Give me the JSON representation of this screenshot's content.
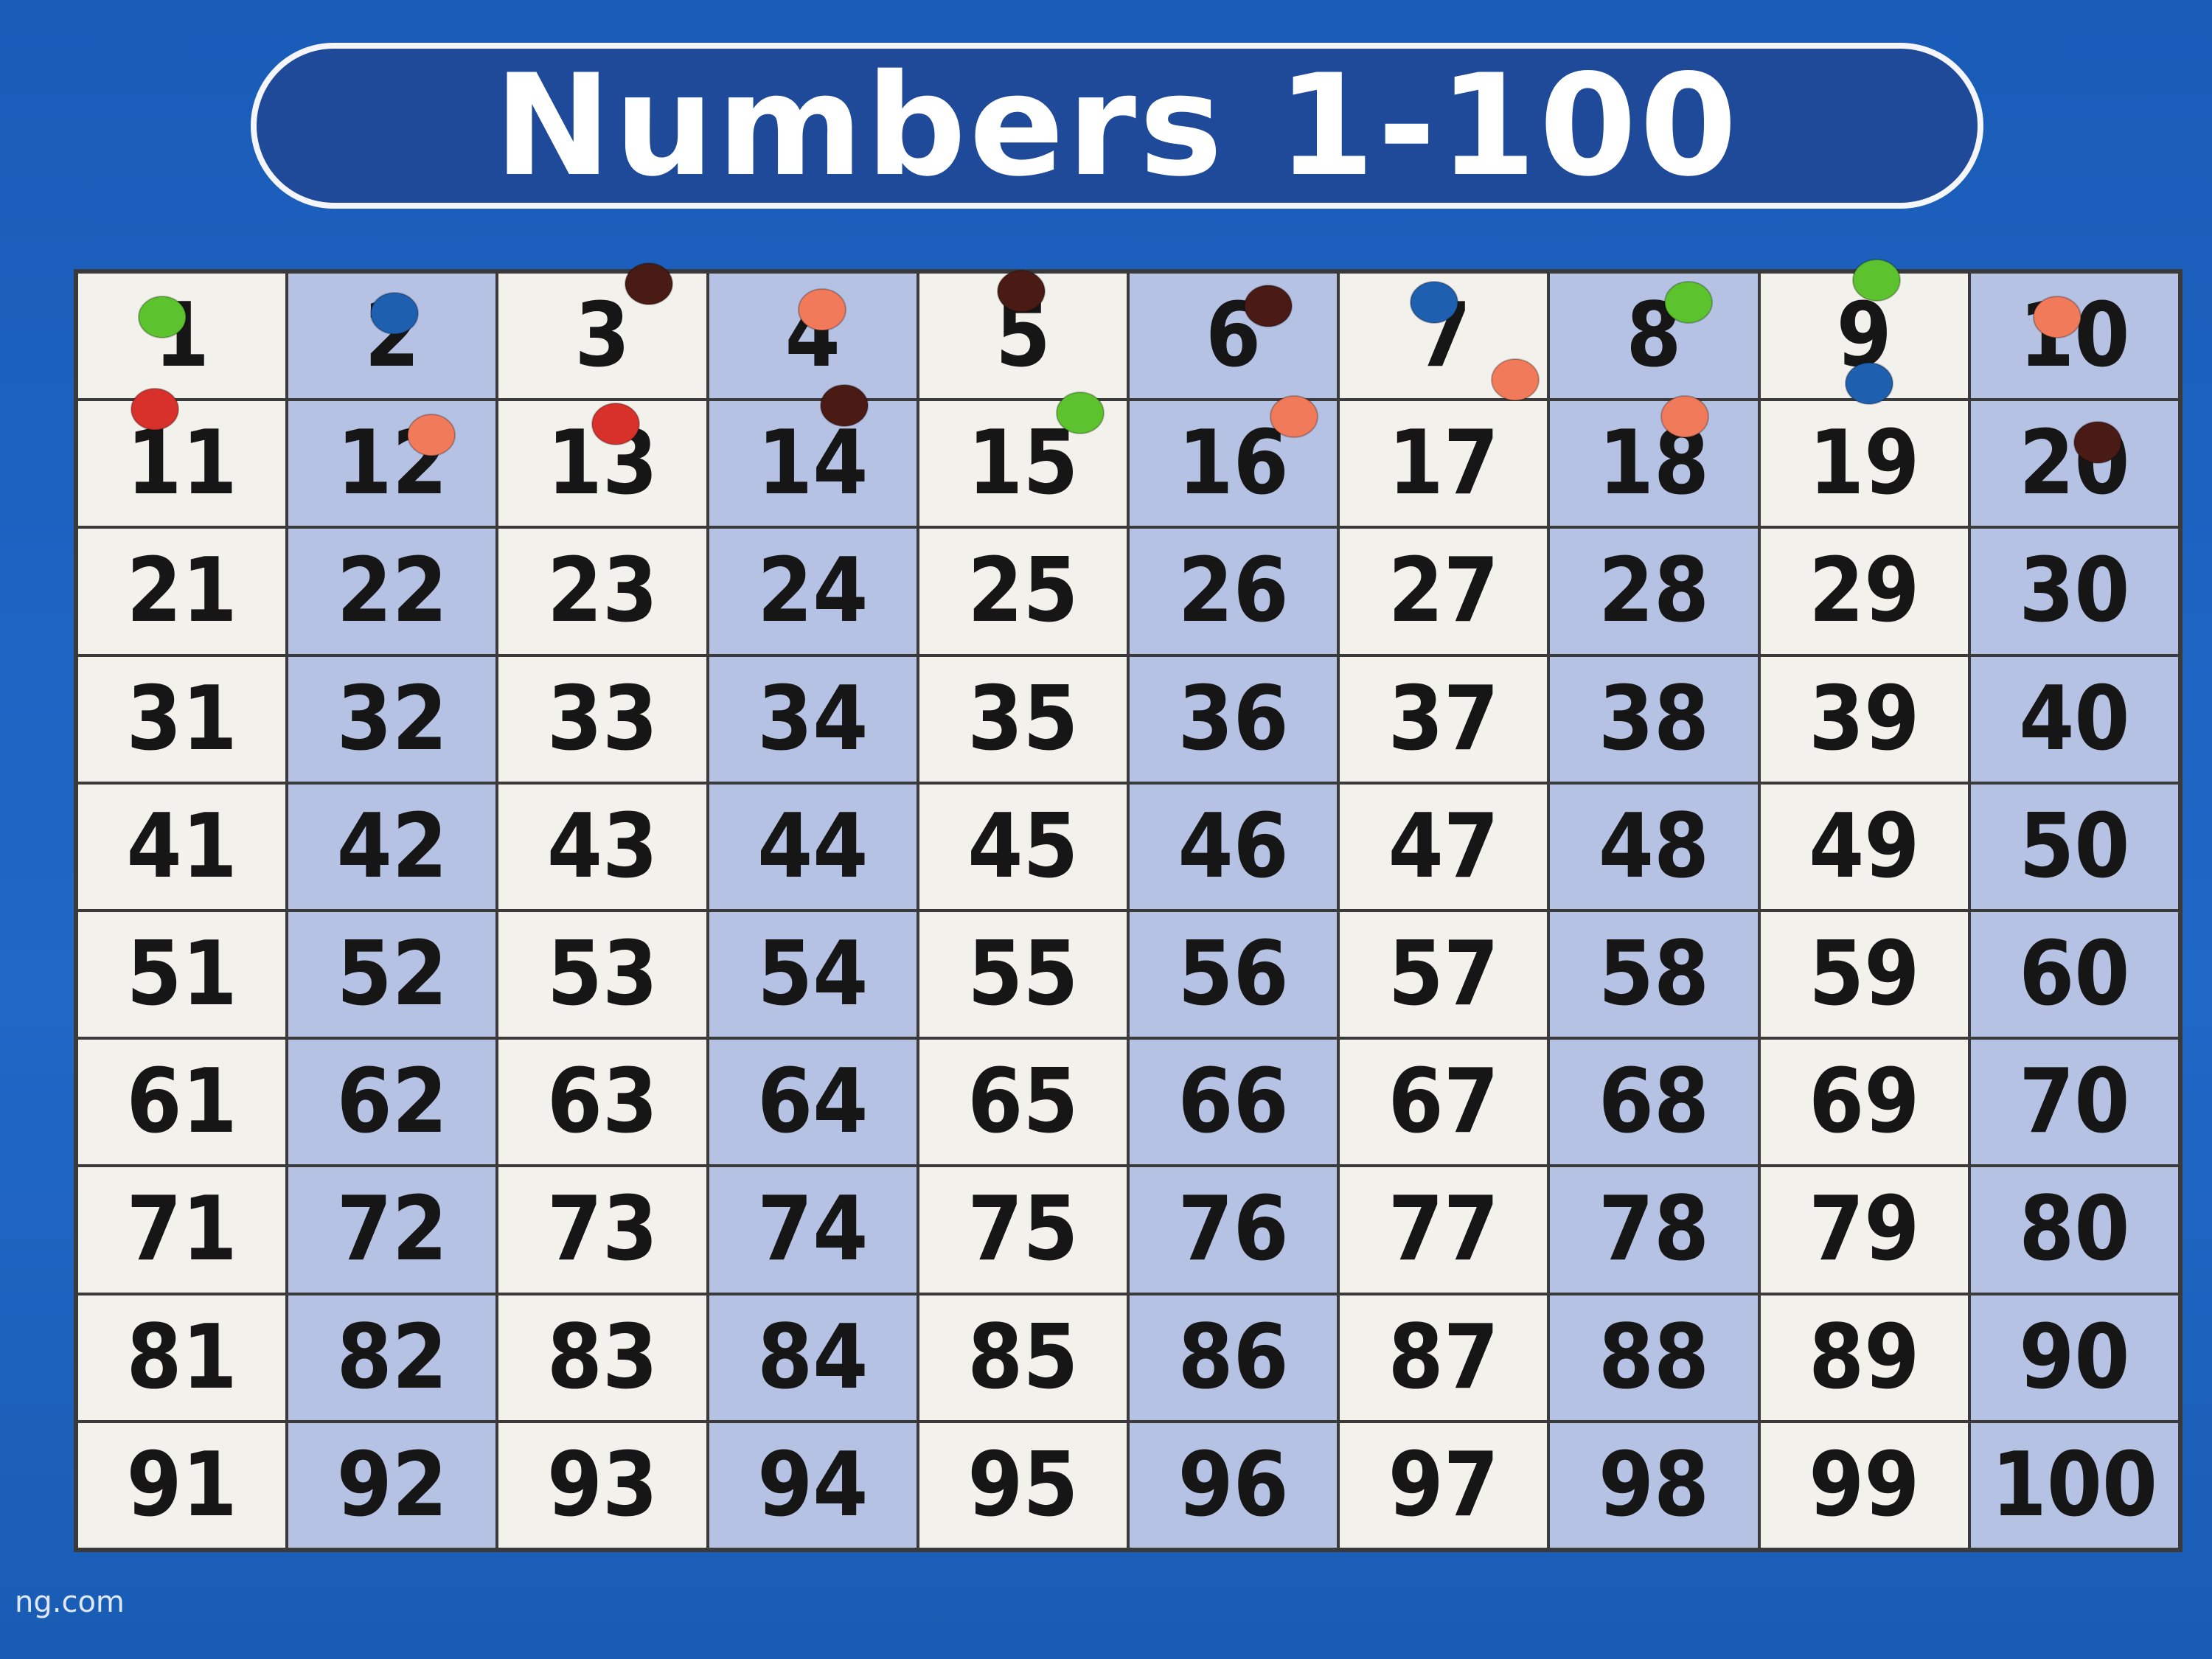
{
  "header": {
    "title": "Numbers 1-100"
  },
  "grid": {
    "rows": [
      [
        1,
        2,
        3,
        4,
        5,
        6,
        7,
        8,
        9,
        10
      ],
      [
        11,
        12,
        13,
        14,
        15,
        16,
        17,
        18,
        19,
        20
      ],
      [
        21,
        22,
        23,
        24,
        25,
        26,
        27,
        28,
        29,
        30
      ],
      [
        31,
        32,
        33,
        34,
        35,
        36,
        37,
        38,
        39,
        40
      ],
      [
        41,
        42,
        43,
        44,
        45,
        46,
        47,
        48,
        49,
        50
      ],
      [
        51,
        52,
        53,
        54,
        55,
        56,
        57,
        58,
        59,
        60
      ],
      [
        61,
        62,
        63,
        64,
        65,
        66,
        67,
        68,
        69,
        70
      ],
      [
        71,
        72,
        73,
        74,
        75,
        76,
        77,
        78,
        79,
        80
      ],
      [
        81,
        82,
        83,
        84,
        85,
        86,
        87,
        88,
        89,
        90
      ],
      [
        91,
        92,
        93,
        94,
        95,
        96,
        97,
        98,
        99,
        100
      ]
    ]
  },
  "footer": {
    "text": "ng.com"
  }
}
